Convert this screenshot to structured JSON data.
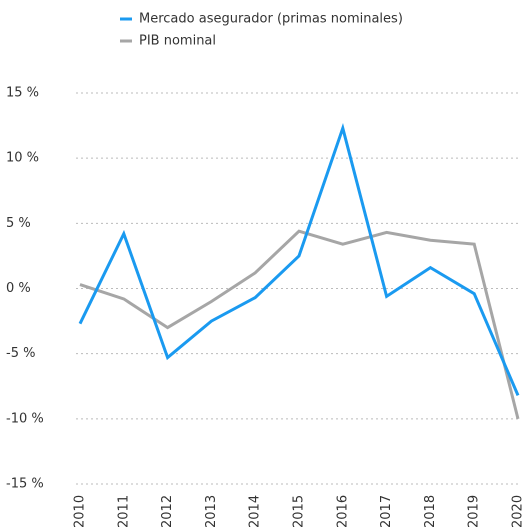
{
  "chart_data": {
    "type": "line",
    "categories": [
      "2010",
      "2011",
      "2012",
      "2013",
      "2014",
      "2015",
      "2016",
      "2017",
      "2018",
      "2019",
      "2020"
    ],
    "series": [
      {
        "name": "Mercado asegurador (primas nominales)",
        "color": "#1a9af0",
        "values": [
          -2.7,
          4.2,
          -5.3,
          -2.5,
          -0.7,
          2.5,
          12.3,
          -0.6,
          1.6,
          -0.4,
          -8.2
        ]
      },
      {
        "name": "PIB nominal",
        "color": "#a6a6a6",
        "values": [
          0.3,
          -0.8,
          -3.0,
          -1.0,
          1.2,
          4.4,
          3.4,
          4.3,
          3.7,
          3.4,
          -10.0
        ]
      }
    ],
    "ylim": [
      -15,
      15
    ],
    "yticks": [
      {
        "value": 15,
        "label": "15 %"
      },
      {
        "value": 10,
        "label": "10 %"
      },
      {
        "value": 5,
        "label": "5 %"
      },
      {
        "value": 0,
        "label": "0 %"
      },
      {
        "value": -5,
        "label": "-5 %"
      },
      {
        "value": -10,
        "label": "-10 %"
      },
      {
        "value": -15,
        "label": "-15 %"
      }
    ],
    "grid": true
  }
}
